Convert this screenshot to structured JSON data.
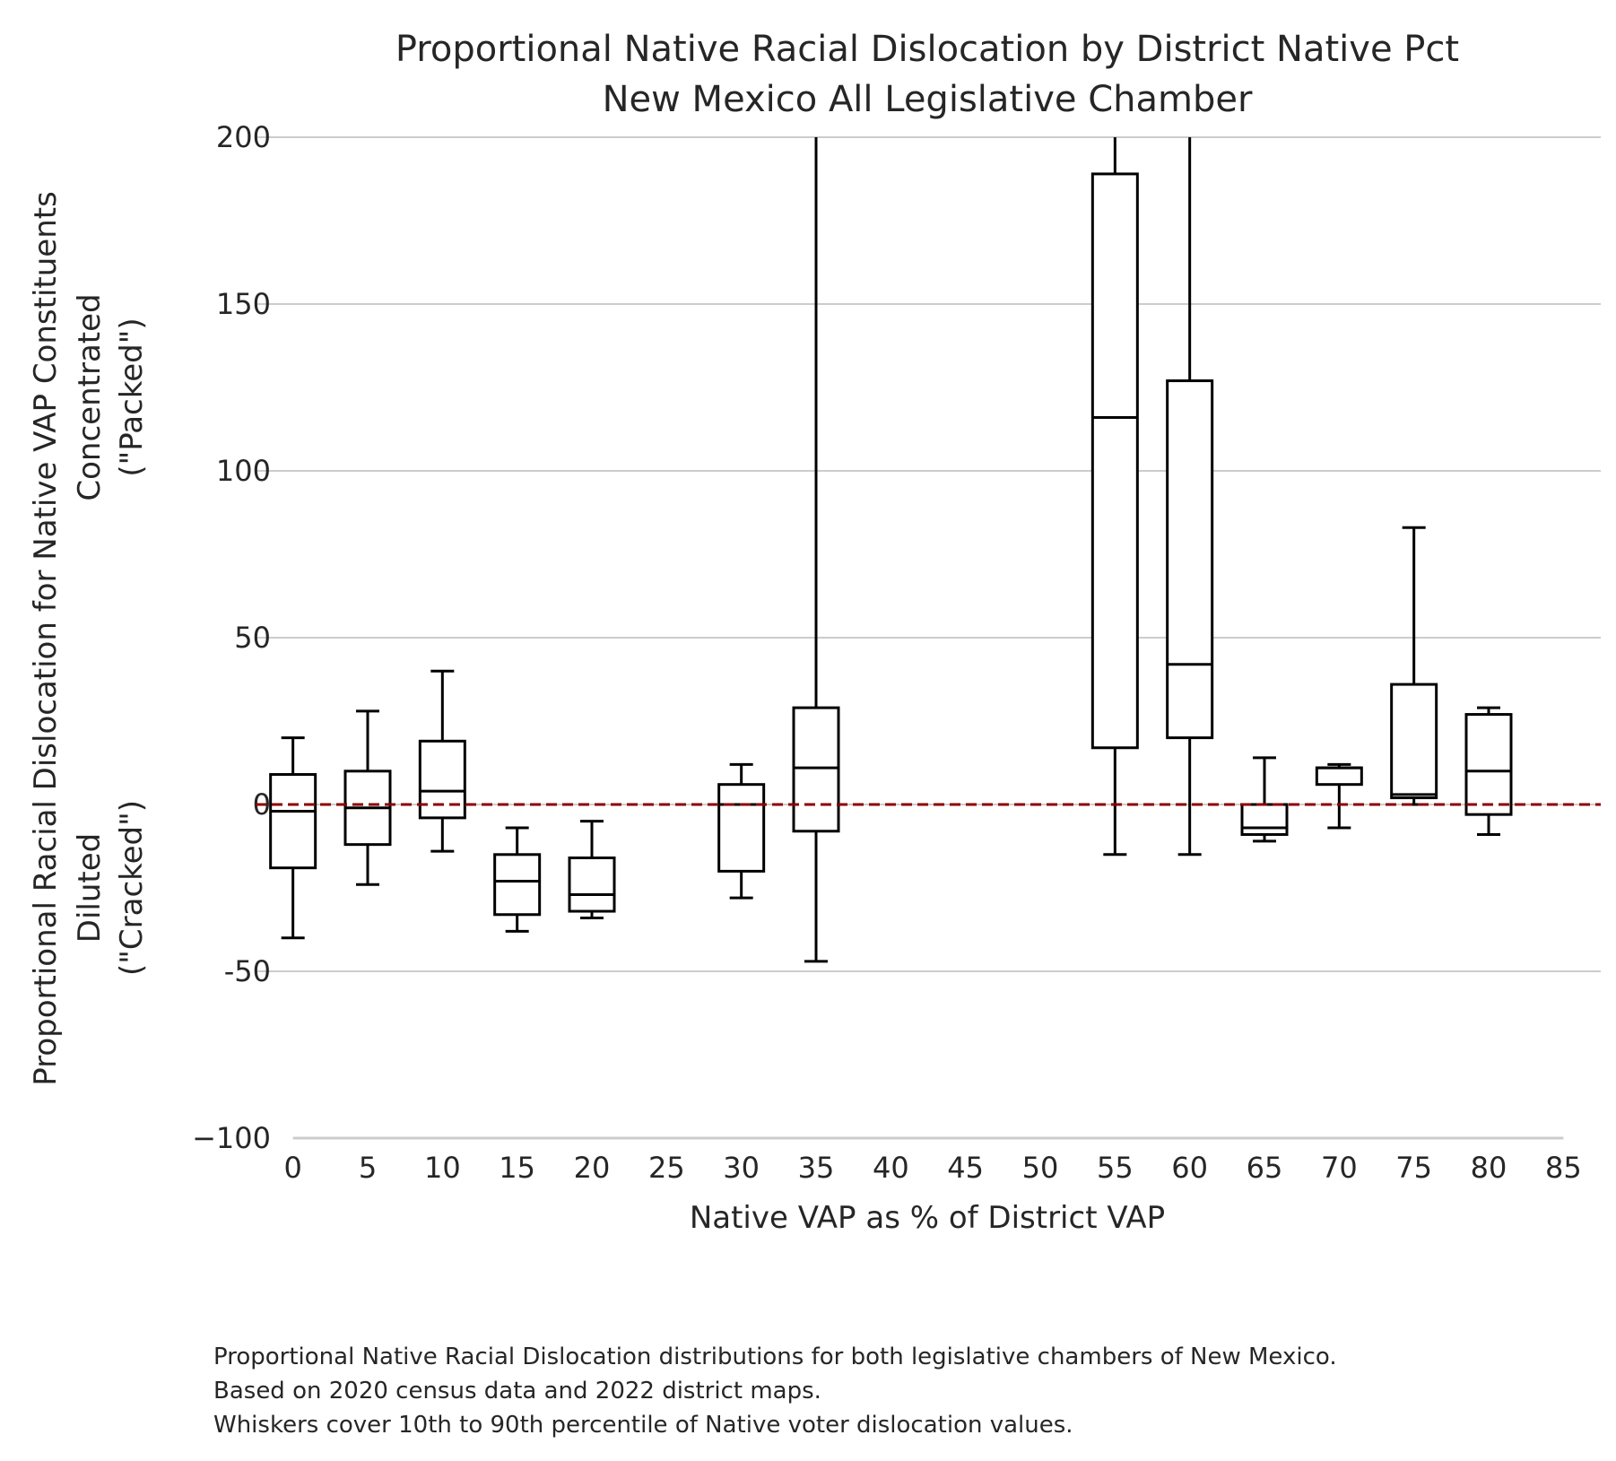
{
  "chart_data": {
    "type": "box",
    "title_lines": [
      "Proportional Native Racial Dislocation by District Native Pct",
      "New Mexico All Legislative Chamber"
    ],
    "xlabel": "Native VAP as % of District VAP",
    "ylabel_lines": [
      "Proportional Racial Dislocation for Native VAP Constituents"
    ],
    "ylabel_top_lines": [
      "Concentrated",
      "(\"Packed\")"
    ],
    "ylabel_bottom_lines": [
      "Diluted",
      "(\"Cracked\")"
    ],
    "x_ticks": [
      0,
      5,
      10,
      15,
      20,
      25,
      30,
      35,
      40,
      45,
      50,
      55,
      60,
      65,
      70,
      75,
      80,
      85
    ],
    "y_ticks": [
      -100,
      -50,
      0,
      50,
      100,
      150,
      200
    ],
    "y_tick_labels": [
      "−100",
      "-50",
      "0",
      "50",
      "100",
      "150",
      "200"
    ],
    "ylim": [
      -100,
      200
    ],
    "xlim": [
      -2.5,
      87.5
    ],
    "grid": true,
    "reference_line": {
      "y": 0,
      "color": "#8b0000",
      "style": "dashed"
    },
    "box_color": "#000000",
    "series": [
      {
        "x": 0,
        "whisker_low": -40,
        "q1": -19,
        "median": -2,
        "q3": 9,
        "whisker_high": 20
      },
      {
        "x": 5,
        "whisker_low": -24,
        "q1": -12,
        "median": -1,
        "q3": 10,
        "whisker_high": 28
      },
      {
        "x": 10,
        "whisker_low": -14,
        "q1": -4,
        "median": 4,
        "q3": 19,
        "whisker_high": 40
      },
      {
        "x": 15,
        "whisker_low": -38,
        "q1": -33,
        "median": -23,
        "q3": -15,
        "whisker_high": -7
      },
      {
        "x": 20,
        "whisker_low": -34,
        "q1": -32,
        "median": -27,
        "q3": -16,
        "whisker_high": -5
      },
      {
        "x": 30,
        "whisker_low": -28,
        "q1": -20,
        "median": 0,
        "q3": 6,
        "whisker_high": 12
      },
      {
        "x": 35,
        "whisker_low": -47,
        "q1": -8,
        "median": 11,
        "q3": 29,
        "whisker_high": 200
      },
      {
        "x": 55,
        "whisker_low": -15,
        "q1": 17,
        "median": 116,
        "q3": 189,
        "whisker_high": 200
      },
      {
        "x": 60,
        "whisker_low": -15,
        "q1": 20,
        "median": 42,
        "q3": 127,
        "whisker_high": 200
      },
      {
        "x": 65,
        "whisker_low": -11,
        "q1": -9,
        "median": -7,
        "q3": 0,
        "whisker_high": 14
      },
      {
        "x": 70,
        "whisker_low": -7,
        "q1": 6,
        "median": 11,
        "q3": 11,
        "whisker_high": 12
      },
      {
        "x": 75,
        "whisker_low": 0,
        "q1": 2,
        "median": 3,
        "q3": 36,
        "whisker_high": 83
      },
      {
        "x": 80,
        "whisker_low": -9,
        "q1": -3,
        "median": 10,
        "q3": 27,
        "whisker_high": 29
      }
    ]
  },
  "caption_lines": [
    "Proportional Native Racial Dislocation distributions for both legislative chambers of New Mexico.",
    "Based on 2020 census data and 2022 district maps.",
    "Whiskers cover 10th to 90th percentile of Native voter dislocation values."
  ]
}
